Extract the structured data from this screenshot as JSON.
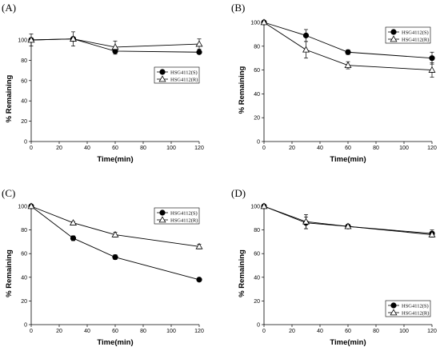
{
  "chart_data": [
    {
      "panel": "(A)",
      "type": "line",
      "xlabel": "Time(min)",
      "ylabel": "% Remaining",
      "xlim": [
        0,
        120
      ],
      "ylim": [
        0,
        100
      ],
      "xticks": [
        0,
        20,
        40,
        60,
        80,
        100,
        120
      ],
      "yticks": [
        0,
        20,
        40,
        60,
        80,
        100
      ],
      "legend_position": "middle-right",
      "x": [
        0,
        30,
        60,
        120
      ],
      "series": [
        {
          "name": "HSG4112(S)",
          "marker": "filled-circle",
          "values": [
            100,
            101,
            89,
            88
          ],
          "errors": [
            2,
            2,
            3,
            1
          ]
        },
        {
          "name": "HSG4112(R)",
          "marker": "open-triangle",
          "values": [
            100,
            101,
            93,
            96
          ],
          "errors": [
            6,
            7,
            6,
            5
          ]
        }
      ]
    },
    {
      "panel": "(B)",
      "type": "line",
      "xlabel": "Time(min)",
      "ylabel": "% Remaining",
      "xlim": [
        0,
        120
      ],
      "ylim": [
        0,
        100
      ],
      "xticks": [
        0,
        20,
        40,
        60,
        80,
        100,
        120
      ],
      "yticks": [
        0,
        20,
        40,
        60,
        80,
        100
      ],
      "legend_position": "top-right",
      "x": [
        0,
        30,
        60,
        120
      ],
      "series": [
        {
          "name": "HSG4112(S)",
          "marker": "filled-circle",
          "values": [
            100,
            89,
            75,
            70
          ],
          "errors": [
            0,
            5,
            2,
            5
          ]
        },
        {
          "name": "HSG4112(R)",
          "marker": "open-triangle",
          "values": [
            100,
            77,
            64,
            60
          ],
          "errors": [
            0,
            7,
            3,
            6
          ]
        }
      ]
    },
    {
      "panel": "(C)",
      "type": "line",
      "xlabel": "Time(min)",
      "ylabel": "% Remaining",
      "xlim": [
        0,
        120
      ],
      "ylim": [
        0,
        100
      ],
      "xticks": [
        0,
        20,
        40,
        60,
        80,
        100,
        120
      ],
      "yticks": [
        0,
        20,
        40,
        60,
        80,
        100
      ],
      "legend_position": "top-right",
      "x": [
        0,
        30,
        60,
        120
      ],
      "series": [
        {
          "name": "HSG4112(S)",
          "marker": "filled-circle",
          "values": [
            100,
            73,
            57,
            38
          ],
          "errors": [
            0,
            2,
            2,
            1
          ]
        },
        {
          "name": "HSG4112(R)",
          "marker": "open-triangle",
          "values": [
            100,
            86,
            76,
            66
          ],
          "errors": [
            0,
            1,
            2,
            2
          ]
        }
      ]
    },
    {
      "panel": "(D)",
      "type": "line",
      "xlabel": "Time(min)",
      "ylabel": "% Remaining",
      "xlim": [
        0,
        120
      ],
      "ylim": [
        0,
        100
      ],
      "xticks": [
        0,
        20,
        40,
        60,
        80,
        100,
        120
      ],
      "yticks": [
        0,
        20,
        40,
        60,
        80,
        100
      ],
      "legend_position": "bottom-right",
      "x": [
        0,
        30,
        60,
        120
      ],
      "series": [
        {
          "name": "HSG4112(S)",
          "marker": "filled-circle",
          "values": [
            100,
            86,
            83,
            77
          ],
          "errors": [
            0,
            5,
            1,
            3
          ]
        },
        {
          "name": "HSG4112(R)",
          "marker": "open-triangle",
          "values": [
            100,
            87,
            83,
            76
          ],
          "errors": [
            0,
            6,
            1,
            2
          ]
        }
      ]
    }
  ]
}
